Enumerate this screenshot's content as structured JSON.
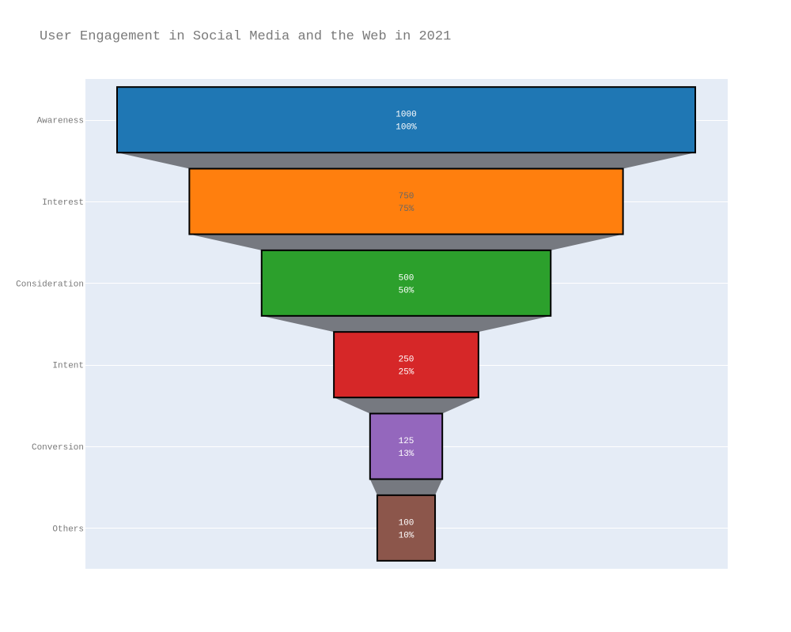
{
  "chart_data": {
    "type": "funnel",
    "title": "User Engagement in Social Media and the Web in 2021",
    "categories": [
      "Awareness",
      "Interest",
      "Consideration",
      "Intent",
      "Conversion",
      "Others"
    ],
    "values": [
      1000,
      750,
      500,
      250,
      125,
      100
    ],
    "percent_labels": [
      "100%",
      "75%",
      "50%",
      "25%",
      "13%",
      "10%"
    ],
    "colors": [
      "#1f77b4",
      "#ff7f0e",
      "#2ca02c",
      "#d62728",
      "#9467bd",
      "#8c564b"
    ],
    "label_colors": [
      "#ffffff",
      "#666666",
      "#ffffff",
      "#ffffff",
      "#ffffff",
      "#ffffff"
    ],
    "connector_color": "#767980",
    "plot_background": "#e5ecf6",
    "grid": true
  }
}
